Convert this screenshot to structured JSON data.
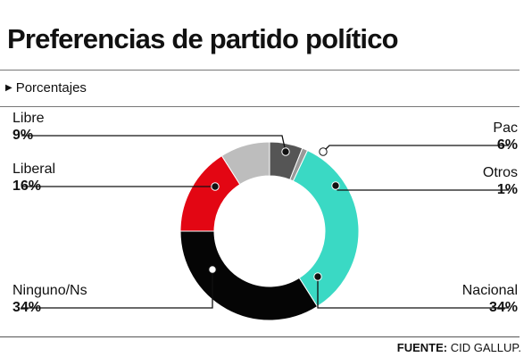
{
  "header": {
    "title": "Preferencias de partido político",
    "subtitle": "Porcentajes"
  },
  "footer": {
    "source_label": "FUENTE:",
    "source_value": "CID GALLUP."
  },
  "chart_data": {
    "type": "pie",
    "variant": "donut",
    "title": "Preferencias de partido político",
    "subtitle": "Porcentajes",
    "unit": "%",
    "legend": "none",
    "slices": [
      {
        "label": "Pac",
        "value": 6,
        "value_label": "6%",
        "color": "#555555"
      },
      {
        "label": "Otros",
        "value": 1,
        "value_label": "1%",
        "color": "#999999"
      },
      {
        "label": "Nacional",
        "value": 34,
        "value_label": "34%",
        "color": "#3ad9c4"
      },
      {
        "label": "Ninguno/Ns",
        "value": 34,
        "value_label": "34%",
        "color": "#050505"
      },
      {
        "label": "Liberal",
        "value": 16,
        "value_label": "16%",
        "color": "#e30613"
      },
      {
        "label": "Libre",
        "value": 9,
        "value_label": "9%",
        "color": "#bdbdbd"
      }
    ]
  }
}
